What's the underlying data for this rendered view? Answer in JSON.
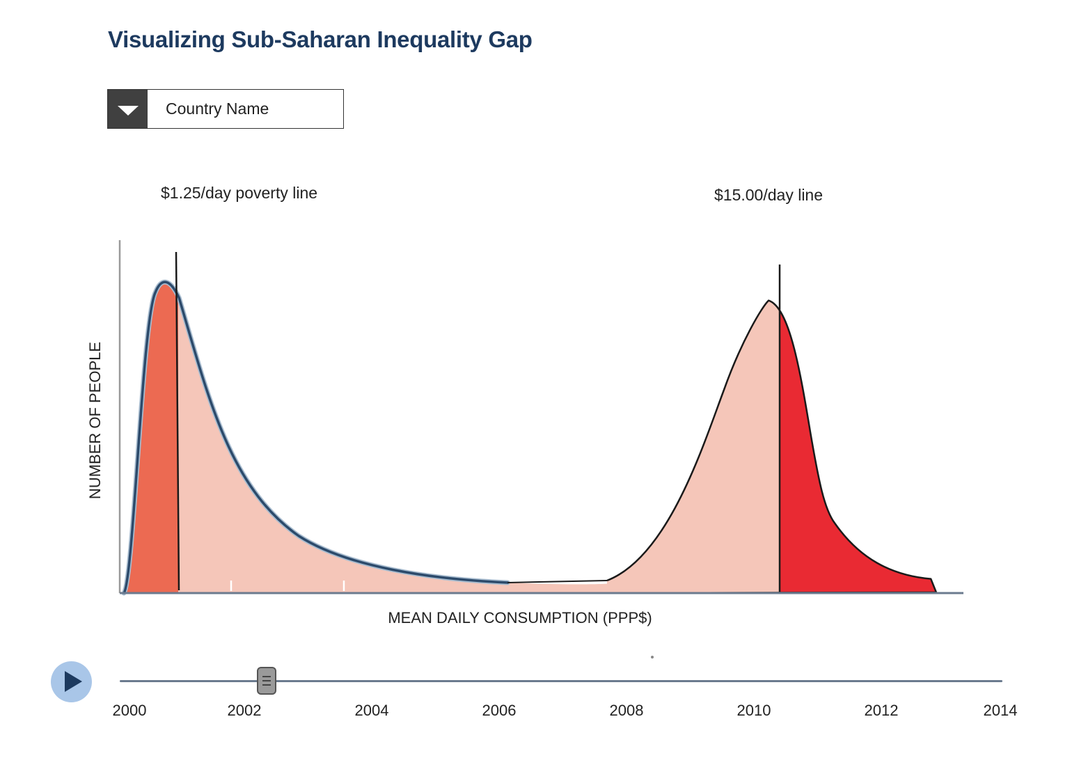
{
  "title": "Visualizing Sub-Saharan Inequality Gap",
  "dropdown": {
    "label": "Country Name"
  },
  "annotations": {
    "poverty_line": "$1.25/day poverty line",
    "high_line": "$15.00/day line"
  },
  "timeline": {
    "years": [
      "2000",
      "2002",
      "2004",
      "2006",
      "2008",
      "2010",
      "2012",
      "2014"
    ],
    "selected_year": 2002.2,
    "min_year": 2000,
    "max_year": 2014
  },
  "colors": {
    "title": "#1d3a5f",
    "curve_outline": "#2c4a6b",
    "fill_light": "#f5c6b9",
    "fill_below_poverty": "#ec6a52",
    "fill_above_line": "#e92a33",
    "play_button": "#a9c6e8",
    "slider_track": "#6b7b8f"
  },
  "chart_data": {
    "type": "area",
    "xlabel": "MEAN DAILY CONSUMPTION (PPP$)",
    "ylabel": "NUMBER OF PEOPLE",
    "x_ticks": [],
    "y_ticks": [],
    "grid": false,
    "legend": "none",
    "series": [
      {
        "name": "",
        "shape": "right-skewed distribution",
        "peak_x": 0.054,
        "peak_y": 1.0,
        "threshold_x": 0.068,
        "threshold_label": "$1.25/day poverty line",
        "below_threshold_color": "#ec6a52",
        "above_threshold_color": "#f5c6b9"
      },
      {
        "name": "",
        "shape": "left-skewed distribution",
        "peak_x": 0.77,
        "peak_y": 0.93,
        "threshold_x": 0.77,
        "threshold_label": "$15.00/day line",
        "below_threshold_color": "#f5c6b9",
        "above_threshold_color": "#e92a33"
      }
    ]
  }
}
